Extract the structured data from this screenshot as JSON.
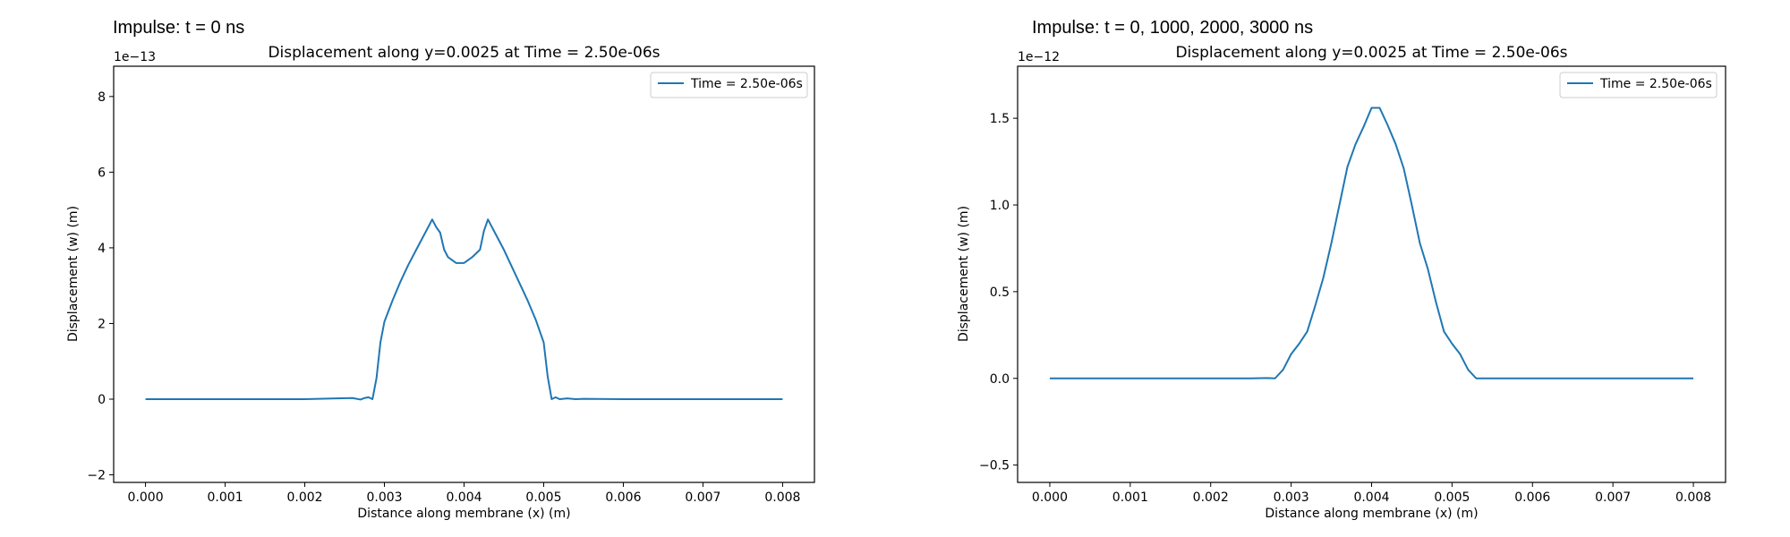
{
  "chart_data": [
    {
      "type": "line",
      "suptitle": "Impulse: t = 0 ns",
      "title": "Displacement along y=0.0025 at Time = 2.50e-06s",
      "xlabel": "Distance along membrane (x) (m)",
      "ylabel": "Displacement (w) (m)",
      "offset_text": "1e−13",
      "scale": 1e-13,
      "xlim": [
        -0.0004,
        0.0084
      ],
      "ylim": [
        -2.2,
        8.8
      ],
      "xticks": [
        0.0,
        0.001,
        0.002,
        0.003,
        0.004,
        0.005,
        0.006,
        0.007,
        0.008
      ],
      "xtick_labels": [
        "0.000",
        "0.001",
        "0.002",
        "0.003",
        "0.004",
        "0.005",
        "0.006",
        "0.007",
        "0.008"
      ],
      "yticks": [
        -2,
        0,
        2,
        4,
        6,
        8
      ],
      "ytick_labels": [
        "−2",
        "0",
        "2",
        "4",
        "6",
        "8"
      ],
      "grid": false,
      "legend_position": "top-right",
      "series": [
        {
          "name": "Time = 2.50e-06s",
          "color": "#1f77b4",
          "x": [
            0.0,
            0.0005,
            0.001,
            0.0015,
            0.002,
            0.0024,
            0.0026,
            0.0027,
            0.00275,
            0.0028,
            0.00285,
            0.0029,
            0.00295,
            0.003,
            0.0031,
            0.0032,
            0.0033,
            0.0034,
            0.0035,
            0.0036,
            0.00365,
            0.0037,
            0.00375,
            0.0038,
            0.0039,
            0.004,
            0.0041,
            0.0042,
            0.00425,
            0.0043,
            0.00435,
            0.0044,
            0.0045,
            0.0046,
            0.0047,
            0.0048,
            0.0049,
            0.005,
            0.00505,
            0.0051,
            0.00515,
            0.0052,
            0.0053,
            0.0054,
            0.0055,
            0.006,
            0.007,
            0.008
          ],
          "y": [
            0,
            0,
            0,
            0,
            0,
            0.02,
            0.03,
            -0.01,
            0.03,
            0.05,
            0.0,
            0.55,
            1.5,
            2.05,
            2.6,
            3.1,
            3.55,
            3.95,
            4.35,
            4.75,
            4.55,
            4.4,
            3.95,
            3.75,
            3.6,
            3.6,
            3.75,
            3.95,
            4.45,
            4.75,
            4.55,
            4.35,
            3.95,
            3.5,
            3.05,
            2.6,
            2.1,
            1.5,
            0.6,
            0.0,
            0.05,
            0.0,
            0.02,
            0.0,
            0.01,
            0,
            0,
            0
          ]
        }
      ]
    },
    {
      "type": "line",
      "suptitle": "Impulse: t = 0, 1000, 2000, 3000 ns",
      "title": "Displacement along y=0.0025 at Time = 2.50e-06s",
      "xlabel": "Distance along membrane (x) (m)",
      "ylabel": "Displacement (w) (m)",
      "offset_text": "1e−12",
      "scale": 1e-12,
      "xlim": [
        -0.0004,
        0.0084
      ],
      "ylim": [
        -0.6,
        1.8
      ],
      "xticks": [
        0.0,
        0.001,
        0.002,
        0.003,
        0.004,
        0.005,
        0.006,
        0.007,
        0.008
      ],
      "xtick_labels": [
        "0.000",
        "0.001",
        "0.002",
        "0.003",
        "0.004",
        "0.005",
        "0.006",
        "0.007",
        "0.008"
      ],
      "yticks": [
        -0.5,
        0.0,
        0.5,
        1.0,
        1.5
      ],
      "ytick_labels": [
        "−0.5",
        "0.0",
        "0.5",
        "1.0",
        "1.5"
      ],
      "grid": false,
      "legend_position": "top-right",
      "series": [
        {
          "name": "Time = 2.50e-06s",
          "color": "#1f77b4",
          "x": [
            0.0,
            0.0005,
            0.001,
            0.0015,
            0.002,
            0.0025,
            0.0027,
            0.0028,
            0.0029,
            0.003,
            0.0031,
            0.0032,
            0.0033,
            0.0034,
            0.0035,
            0.0036,
            0.0037,
            0.0038,
            0.0039,
            0.004,
            0.0041,
            0.0042,
            0.0043,
            0.0044,
            0.0045,
            0.0046,
            0.0047,
            0.0048,
            0.0049,
            0.005,
            0.0051,
            0.0052,
            0.0053,
            0.0054,
            0.0055,
            0.006,
            0.007,
            0.008
          ],
          "y": [
            0,
            0,
            0,
            0,
            0,
            0.0,
            0.002,
            0.0,
            0.05,
            0.14,
            0.2,
            0.27,
            0.42,
            0.58,
            0.78,
            1.0,
            1.22,
            1.35,
            1.45,
            1.56,
            1.56,
            1.46,
            1.35,
            1.21,
            1.0,
            0.78,
            0.63,
            0.44,
            0.27,
            0.2,
            0.14,
            0.05,
            0.0,
            0.0,
            0.0,
            0,
            0,
            0
          ]
        }
      ]
    }
  ]
}
